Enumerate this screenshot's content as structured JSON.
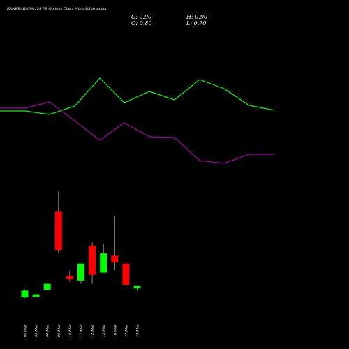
{
  "title": "BANKBARODA 255 PE Options Chart MunafaSutra.com",
  "ohlc": {
    "close": "C: 0.90",
    "high": "H: 0.90",
    "open": "O: 0.80",
    "low": "L: 0.70"
  },
  "colors": {
    "background": "#000000",
    "up": "#00ff00",
    "down": "#ff0000",
    "line_green": "#00ff00",
    "line_magenta": "#aa00aa",
    "wick": "#aaaaaa"
  },
  "chart_data": {
    "type": "candlestick",
    "categories": [
      "04 Mar",
      "05 Mar",
      "06 Mar",
      "09 Mar",
      "10 Mar",
      "11 Mar",
      "12 Mar",
      "13 Mar",
      "16 Mar",
      "17 Mar",
      "18 Mar"
    ],
    "candles": [
      {
        "date": "04 Mar",
        "open": 0.4,
        "high": 0.75,
        "low": 0.38,
        "close": 0.7,
        "direction": "up"
      },
      {
        "date": "05 Mar",
        "open": 0.42,
        "high": 0.55,
        "low": 0.4,
        "close": 0.54,
        "direction": "up"
      },
      {
        "date": "06 Mar",
        "open": 0.74,
        "high": 1.02,
        "low": 0.72,
        "close": 1.0,
        "direction": "up"
      },
      {
        "date": "09 Mar",
        "open": 4.2,
        "high": 5.1,
        "low": 2.4,
        "close": 2.5,
        "direction": "down"
      },
      {
        "date": "10 Mar",
        "open": 1.35,
        "high": 1.6,
        "low": 1.1,
        "close": 1.2,
        "direction": "down"
      },
      {
        "date": "11 Mar",
        "open": 1.15,
        "high": 1.9,
        "low": 1.0,
        "close": 1.9,
        "direction": "up"
      },
      {
        "date": "12 Mar",
        "open": 2.7,
        "high": 2.85,
        "low": 1.0,
        "close": 1.4,
        "direction": "down"
      },
      {
        "date": "13 Mar",
        "open": 1.5,
        "high": 2.75,
        "low": 1.5,
        "close": 2.35,
        "direction": "up"
      },
      {
        "date": "16 Mar",
        "open": 2.25,
        "high": 4.0,
        "low": 1.6,
        "close": 1.95,
        "direction": "down"
      },
      {
        "date": "17 Mar",
        "open": 1.9,
        "high": 1.9,
        "low": 0.9,
        "close": 0.95,
        "direction": "down"
      },
      {
        "date": "18 Mar",
        "open": 0.8,
        "high": 0.9,
        "low": 0.7,
        "close": 0.9,
        "direction": "up"
      }
    ],
    "green_line": [
      159,
      159,
      164,
      152,
      112,
      147,
      131,
      143,
      114,
      127,
      151,
      158
    ],
    "magenta_line": [
      155,
      155,
      146,
      173,
      201,
      176,
      196,
      197,
      230,
      234,
      221,
      221
    ]
  }
}
